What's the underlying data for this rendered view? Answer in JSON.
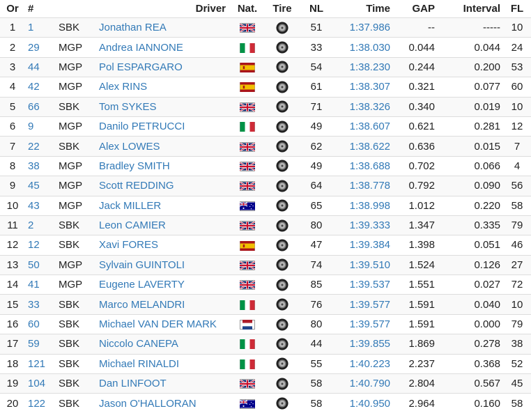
{
  "headers": {
    "or": "Or",
    "num": "#",
    "cls": "",
    "driver": "Driver",
    "nat": "Nat.",
    "tire": "Tire",
    "nl": "NL",
    "time": "Time",
    "gap": "GAP",
    "interval": "Interval",
    "fl": "FL"
  },
  "rows": [
    {
      "or": "1",
      "num": "1",
      "cls": "SBK",
      "driver": "Jonathan REA",
      "nat": "GBR",
      "tire": "tire-icon",
      "nl": "51",
      "time": "1:37.986",
      "gap": "--",
      "interval": "-----",
      "fl": "10"
    },
    {
      "or": "2",
      "num": "29",
      "cls": "MGP",
      "driver": "Andrea IANNONE",
      "nat": "ITA",
      "tire": "tire-icon",
      "nl": "33",
      "time": "1:38.030",
      "gap": "0.044",
      "interval": "0.044",
      "fl": "24"
    },
    {
      "or": "3",
      "num": "44",
      "cls": "MGP",
      "driver": "Pol ESPARGARO",
      "nat": "ESP",
      "tire": "tire-icon",
      "nl": "54",
      "time": "1:38.230",
      "gap": "0.244",
      "interval": "0.200",
      "fl": "53"
    },
    {
      "or": "4",
      "num": "42",
      "cls": "MGP",
      "driver": "Alex RINS",
      "nat": "ESP",
      "tire": "tire-icon",
      "nl": "61",
      "time": "1:38.307",
      "gap": "0.321",
      "interval": "0.077",
      "fl": "60"
    },
    {
      "or": "5",
      "num": "66",
      "cls": "SBK",
      "driver": "Tom SYKES",
      "nat": "GBR",
      "tire": "tire-icon",
      "nl": "71",
      "time": "1:38.326",
      "gap": "0.340",
      "interval": "0.019",
      "fl": "10"
    },
    {
      "or": "6",
      "num": "9",
      "cls": "MGP",
      "driver": "Danilo PETRUCCI",
      "nat": "ITA",
      "tire": "tire-icon",
      "nl": "49",
      "time": "1:38.607",
      "gap": "0.621",
      "interval": "0.281",
      "fl": "12"
    },
    {
      "or": "7",
      "num": "22",
      "cls": "SBK",
      "driver": "Alex LOWES",
      "nat": "GBR",
      "tire": "tire-icon",
      "nl": "62",
      "time": "1:38.622",
      "gap": "0.636",
      "interval": "0.015",
      "fl": "7"
    },
    {
      "or": "8",
      "num": "38",
      "cls": "MGP",
      "driver": "Bradley SMITH",
      "nat": "GBR",
      "tire": "tire-icon",
      "nl": "49",
      "time": "1:38.688",
      "gap": "0.702",
      "interval": "0.066",
      "fl": "4"
    },
    {
      "or": "9",
      "num": "45",
      "cls": "MGP",
      "driver": "Scott REDDING",
      "nat": "GBR",
      "tire": "tire-icon",
      "nl": "64",
      "time": "1:38.778",
      "gap": "0.792",
      "interval": "0.090",
      "fl": "56"
    },
    {
      "or": "10",
      "num": "43",
      "cls": "MGP",
      "driver": "Jack MILLER",
      "nat": "AUS",
      "tire": "tire-icon",
      "nl": "65",
      "time": "1:38.998",
      "gap": "1.012",
      "interval": "0.220",
      "fl": "58"
    },
    {
      "or": "11",
      "num": "2",
      "cls": "SBK",
      "driver": "Leon CAMIER",
      "nat": "GBR",
      "tire": "tire-icon",
      "nl": "80",
      "time": "1:39.333",
      "gap": "1.347",
      "interval": "0.335",
      "fl": "79"
    },
    {
      "or": "12",
      "num": "12",
      "cls": "SBK",
      "driver": "Xavi FORES",
      "nat": "ESP",
      "tire": "tire-icon",
      "nl": "47",
      "time": "1:39.384",
      "gap": "1.398",
      "interval": "0.051",
      "fl": "46"
    },
    {
      "or": "13",
      "num": "50",
      "cls": "MGP",
      "driver": "Sylvain GUINTOLI",
      "nat": "GBR",
      "tire": "tire-icon",
      "nl": "74",
      "time": "1:39.510",
      "gap": "1.524",
      "interval": "0.126",
      "fl": "27"
    },
    {
      "or": "14",
      "num": "41",
      "cls": "MGP",
      "driver": "Eugene LAVERTY",
      "nat": "GBR",
      "tire": "tire-icon",
      "nl": "85",
      "time": "1:39.537",
      "gap": "1.551",
      "interval": "0.027",
      "fl": "72"
    },
    {
      "or": "15",
      "num": "33",
      "cls": "SBK",
      "driver": "Marco MELANDRI",
      "nat": "ITA",
      "tire": "tire-icon",
      "nl": "76",
      "time": "1:39.577",
      "gap": "1.591",
      "interval": "0.040",
      "fl": "10"
    },
    {
      "or": "16",
      "num": "60",
      "cls": "SBK",
      "driver": "Michael VAN DER MARK",
      "nat": "NED",
      "tire": "tire-icon",
      "nl": "80",
      "time": "1:39.577",
      "gap": "1.591",
      "interval": "0.000",
      "fl": "79"
    },
    {
      "or": "17",
      "num": "59",
      "cls": "SBK",
      "driver": "Niccolo CANEPA",
      "nat": "ITA",
      "tire": "tire-icon",
      "nl": "44",
      "time": "1:39.855",
      "gap": "1.869",
      "interval": "0.278",
      "fl": "38"
    },
    {
      "or": "18",
      "num": "121",
      "cls": "SBK",
      "driver": "Michael RINALDI",
      "nat": "ITA",
      "tire": "tire-icon",
      "nl": "55",
      "time": "1:40.223",
      "gap": "2.237",
      "interval": "0.368",
      "fl": "52"
    },
    {
      "or": "19",
      "num": "104",
      "cls": "SBK",
      "driver": "Dan LINFOOT",
      "nat": "GBR",
      "tire": "tire-icon",
      "nl": "58",
      "time": "1:40.790",
      "gap": "2.804",
      "interval": "0.567",
      "fl": "45"
    },
    {
      "or": "20",
      "num": "122",
      "cls": "SBK",
      "driver": "Jason O'HALLORAN",
      "nat": "AUS",
      "tire": "tire-icon",
      "nl": "58",
      "time": "1:40.950",
      "gap": "2.964",
      "interval": "0.160",
      "fl": "58"
    }
  ],
  "colors": {
    "link": "#337ab7",
    "row_stripe": "#f9f9f9",
    "divider": "#dddddd"
  }
}
